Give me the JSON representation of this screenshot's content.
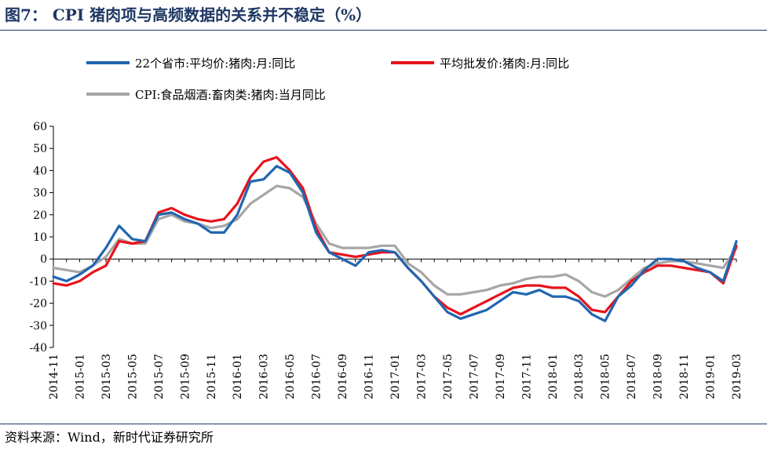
{
  "title": "图7： CPI 猪肉项与高频数据的关系并不稳定（%）",
  "source": "资料来源：Wind，新时代证券研究所",
  "colors": {
    "blue": "#2166b0",
    "red": "#e8131b",
    "gray": "#a6a6a6",
    "title": "#1f3864"
  },
  "chart_data": {
    "type": "line",
    "title": "图7： CPI 猪肉项与高频数据的关系并不稳定（%）",
    "xlabel": "",
    "ylabel": "",
    "ylim": [
      -40,
      60
    ],
    "yticks": [
      60,
      50,
      40,
      30,
      20,
      10,
      0,
      -10,
      -20,
      -30,
      -40
    ],
    "x": [
      "2014-11",
      "2014-12",
      "2015-01",
      "2015-02",
      "2015-03",
      "2015-04",
      "2015-05",
      "2015-06",
      "2015-07",
      "2015-08",
      "2015-09",
      "2015-10",
      "2015-11",
      "2015-12",
      "2016-01",
      "2016-02",
      "2016-03",
      "2016-04",
      "2016-05",
      "2016-06",
      "2016-07",
      "2016-08",
      "2016-09",
      "2016-10",
      "2016-11",
      "2016-12",
      "2017-01",
      "2017-02",
      "2017-03",
      "2017-04",
      "2017-05",
      "2017-06",
      "2017-07",
      "2017-08",
      "2017-09",
      "2017-10",
      "2017-11",
      "2017-12",
      "2018-01",
      "2018-02",
      "2018-03",
      "2018-04",
      "2018-05",
      "2018-06",
      "2018-07",
      "2018-08",
      "2018-09",
      "2018-10",
      "2018-11",
      "2018-12",
      "2019-01",
      "2019-02",
      "2019-03"
    ],
    "xticks": [
      "2014-11",
      "2015-01",
      "2015-03",
      "2015-05",
      "2015-07",
      "2015-09",
      "2015-11",
      "2016-01",
      "2016-03",
      "2016-05",
      "2016-07",
      "2016-09",
      "2016-11",
      "2017-01",
      "2017-03",
      "2017-05",
      "2017-07",
      "2017-09",
      "2017-11",
      "2018-01",
      "2018-03",
      "2018-05",
      "2018-07",
      "2018-09",
      "2018-11",
      "2019-01",
      "2019-03"
    ],
    "grid": false,
    "legend_position": "top",
    "series": [
      {
        "name": "22个省市:平均价:猪肉:月:同比",
        "color": "blue",
        "values": [
          -8,
          -10,
          -7,
          -3,
          5,
          15,
          9,
          8,
          20,
          21,
          18,
          16,
          12,
          12,
          20,
          35,
          36,
          42,
          39,
          30,
          12,
          3,
          0,
          -3,
          3,
          4,
          3,
          -4,
          -10,
          -17,
          -24,
          -27,
          -25,
          -23,
          -19,
          -15,
          -16,
          -14,
          -17,
          -17,
          -19,
          -25,
          -28,
          -17,
          -12,
          -5,
          0,
          0,
          -1,
          -4,
          -6,
          -10,
          8
        ]
      },
      {
        "name": "平均批发价:猪肉:月:同比",
        "color": "red",
        "values": [
          -11,
          -12,
          -10,
          -6,
          -3,
          8,
          7,
          8,
          21,
          23,
          20,
          18,
          17,
          18,
          25,
          37,
          44,
          46,
          40,
          32,
          14,
          3,
          2,
          1,
          2,
          3,
          3,
          -4,
          -10,
          -17,
          -22,
          -25,
          -22,
          -19,
          -16,
          -13,
          -12,
          -12,
          -13,
          -13,
          -17,
          -23,
          -24,
          -17,
          -10,
          -6,
          -3,
          -3,
          -4,
          -5,
          -6,
          -11,
          6
        ]
      },
      {
        "name": "CPI:食品烟酒:畜肉类:猪肉:当月同比",
        "color": "gray",
        "values": [
          -4,
          -5,
          -6,
          -3,
          1,
          9,
          7,
          7,
          18,
          20,
          17,
          16,
          14,
          15,
          18,
          25,
          29,
          33,
          32,
          28,
          16,
          7,
          5,
          5,
          5,
          6,
          6,
          -2,
          -6,
          -12,
          -16,
          -16,
          -15,
          -14,
          -12,
          -11,
          -9,
          -8,
          -8,
          -7,
          -10,
          -15,
          -17,
          -14,
          -9,
          -4,
          -2,
          -1,
          -1,
          -2,
          -3,
          -4,
          5
        ]
      }
    ]
  }
}
